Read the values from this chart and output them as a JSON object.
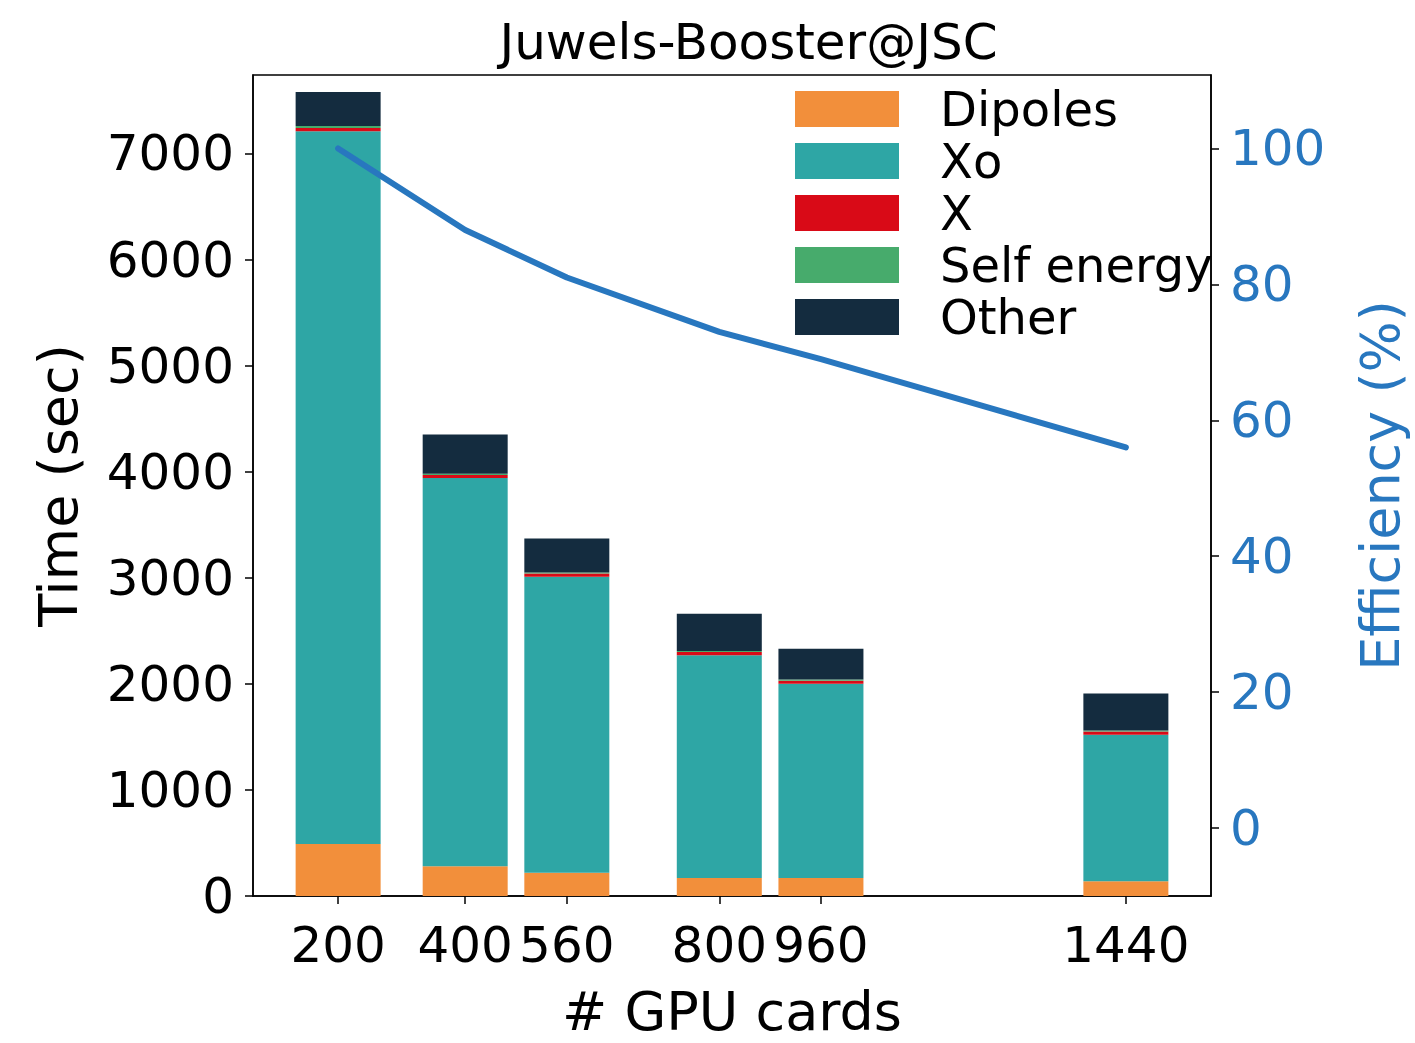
{
  "chart_data": {
    "type": "bar",
    "title": "Juwels-Booster@JSC",
    "xlabel": "# GPU cards",
    "ylabel": "Time (sec)",
    "y2label": "Efficiency (%)",
    "x": [
      200,
      400,
      560,
      800,
      960,
      1440
    ],
    "xlim": [
      66,
      1574
    ],
    "xticks": [
      200,
      400,
      560,
      800,
      960,
      1440
    ],
    "ylim": [
      0,
      7740
    ],
    "yticks": [
      0,
      1000,
      2000,
      3000,
      4000,
      5000,
      6000,
      7000
    ],
    "y2lim": [
      -10,
      110.8
    ],
    "y2ticks": [
      0,
      20,
      40,
      60,
      80,
      100
    ],
    "stacked": true,
    "legend": "top right",
    "grid": false,
    "series": [
      {
        "name": "Dipoles",
        "color": "#f28f3b",
        "values": [
          490,
          280,
          220,
          170,
          170,
          140
        ]
      },
      {
        "name": "Xo",
        "color": "#2ea6a5",
        "values": [
          6720,
          3660,
          2790,
          2100,
          1830,
          1380
        ]
      },
      {
        "name": "X",
        "color": "#d90a17",
        "values": [
          30,
          30,
          30,
          30,
          30,
          30
        ]
      },
      {
        "name": "Self energy",
        "color": "#47ab6c",
        "values": [
          20,
          10,
          10,
          10,
          10,
          10
        ]
      },
      {
        "name": "Other",
        "color": "#142c3f",
        "values": [
          320,
          370,
          320,
          350,
          290,
          350
        ]
      },
      {
        "type": "line",
        "axis": "y2",
        "color": "#2877bf",
        "values": [
          100,
          88,
          81,
          73,
          69,
          56
        ]
      }
    ]
  }
}
